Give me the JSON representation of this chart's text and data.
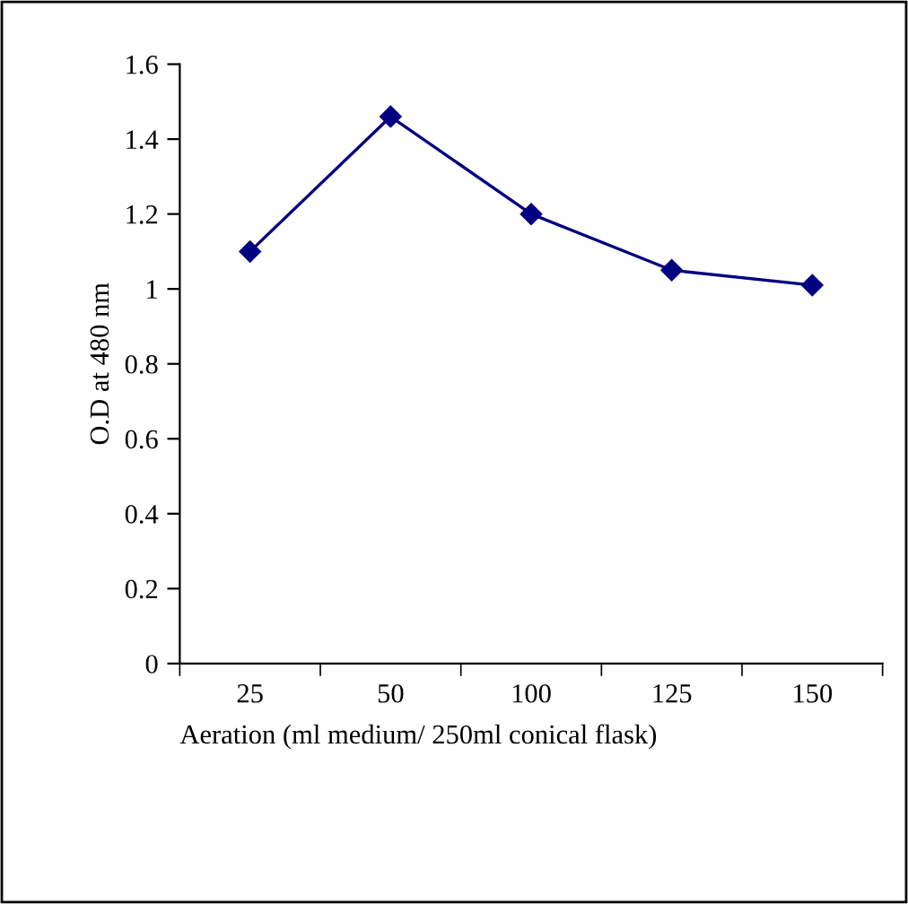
{
  "chart_data": {
    "type": "line",
    "xlabel": "Aeration (ml medium/ 250ml conical flask)",
    "ylabel": "O.D at 480 nm",
    "categories": [
      "25",
      "50",
      "100",
      "125",
      "150"
    ],
    "series": [
      {
        "color": "#000080",
        "values": [
          1.1,
          1.46,
          1.2,
          1.05,
          1.01
        ]
      }
    ],
    "ylim": [
      0,
      1.6
    ],
    "yticks": [
      0,
      0.2,
      0.4,
      0.6,
      0.8,
      1,
      1.2,
      1.4,
      1.6
    ],
    "grid": false,
    "legend": false,
    "marker": "diamond",
    "line_style": "solid"
  }
}
